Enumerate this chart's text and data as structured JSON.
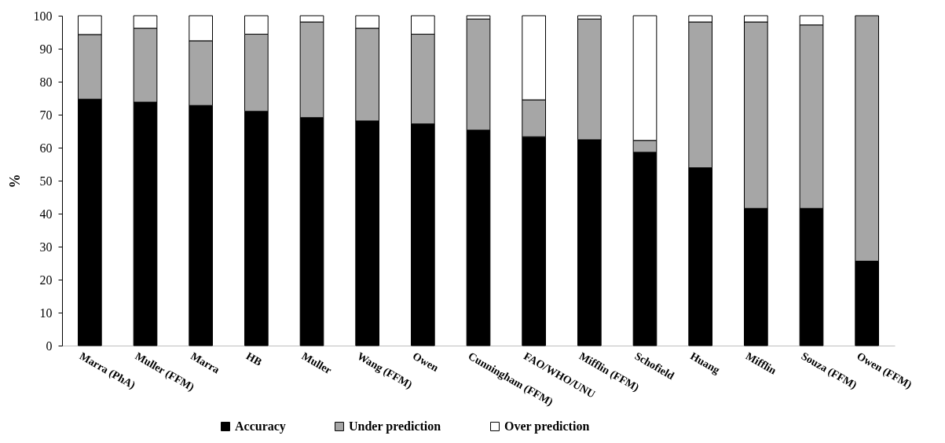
{
  "chart_data": {
    "type": "bar",
    "stacked": true,
    "ylabel": "%",
    "legend": "bottom",
    "categories": [
      "Marra (PhA)",
      "Muller (FFM)",
      "Marra",
      "HB",
      "Muller",
      "Wang (FFM)",
      "Owen",
      "Cunningham (FFM)",
      "FAO/WHO/UNU",
      "Mifflin (FFM)",
      "Schofield",
      "Huang",
      "Mifflin",
      "Souza (FFM)",
      "Owen (FFM)"
    ],
    "ylim": [
      0,
      100
    ],
    "yticks": [
      0,
      10,
      20,
      30,
      40,
      50,
      60,
      70,
      80,
      90,
      100
    ],
    "series": [
      {
        "name": "Accuracy",
        "color": "#000000",
        "values": [
          74.7,
          73.8,
          72.8,
          71.0,
          69.1,
          68.1,
          67.2,
          65.3,
          63.3,
          62.4,
          58.6,
          53.9,
          41.6,
          41.6,
          25.6
        ]
      },
      {
        "name": "Under prediction",
        "color": "#a6a6a6",
        "values": [
          19.6,
          22.4,
          19.6,
          23.4,
          29.0,
          28.1,
          27.2,
          33.7,
          11.2,
          36.6,
          3.6,
          44.2,
          56.5,
          55.6,
          74.4
        ]
      },
      {
        "name": "Over prediction",
        "color": "#ffffff",
        "values": [
          5.7,
          3.8,
          7.6,
          5.6,
          1.9,
          3.8,
          5.6,
          1.0,
          25.5,
          1.0,
          37.8,
          1.9,
          1.9,
          2.8,
          null
        ]
      }
    ]
  }
}
